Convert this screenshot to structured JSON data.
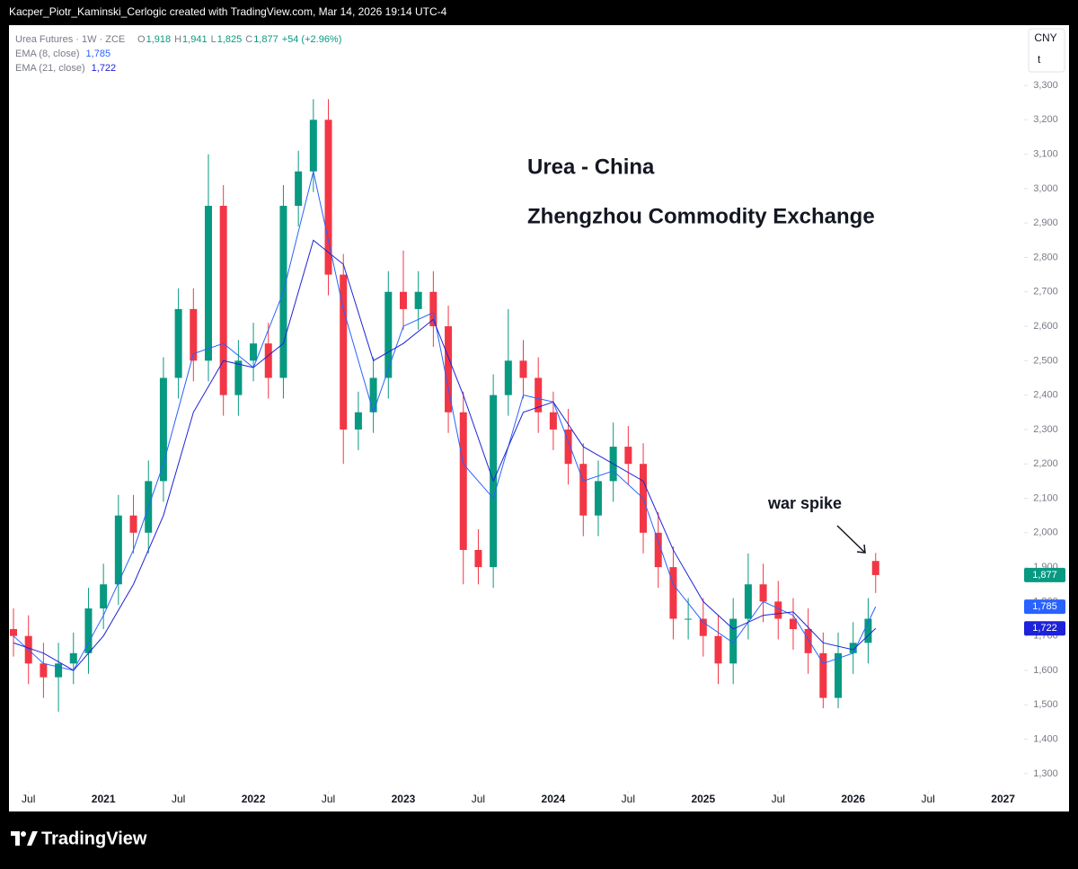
{
  "header": "Kacper_Piotr_Kaminski_Cerlogic created with TradingView.com, Mar 14, 2026 19:14 UTC-4",
  "footer": "TradingView",
  "currency": "CNY",
  "unit": "t",
  "chart_data": {
    "type": "candlestick",
    "symbol": "Urea Futures · 1W · ZCE",
    "ohlc": [
      {
        "prefix": "O",
        "value": 1918,
        "label": "1,918"
      },
      {
        "prefix": "H",
        "value": 1941,
        "label": "1,941"
      },
      {
        "prefix": "L",
        "value": 1825,
        "label": "1,825"
      },
      {
        "prefix": "C",
        "value": 1877,
        "label": "1,877"
      }
    ],
    "change": "+54 (+2.96%)",
    "annotations": [
      "Urea - China",
      "Zhengzhou Commodity Exchange",
      "war spike"
    ],
    "up_color": "#089981",
    "down_color": "#f23645",
    "x": [
      2020.4,
      2020.5,
      2020.6,
      2020.7,
      2020.8,
      2020.9,
      2021.0,
      2021.1,
      2021.2,
      2021.3,
      2021.4,
      2021.5,
      2021.6,
      2021.7,
      2021.8,
      2021.9,
      2022.0,
      2022.1,
      2022.2,
      2022.3,
      2022.4,
      2022.5,
      2022.6,
      2022.7,
      2022.8,
      2022.9,
      2023.0,
      2023.1,
      2023.2,
      2023.3,
      2023.4,
      2023.5,
      2023.6,
      2023.7,
      2023.8,
      2023.9,
      2024.0,
      2024.1,
      2024.2,
      2024.3,
      2024.4,
      2024.5,
      2024.6,
      2024.7,
      2024.8,
      2024.9,
      2025.0,
      2025.1,
      2025.2,
      2025.3,
      2025.4,
      2025.5,
      2025.6,
      2025.7,
      2025.8,
      2025.9,
      2026.0,
      2026.1,
      2026.15
    ],
    "open": [
      1720,
      1700,
      1620,
      1580,
      1620,
      1650,
      1780,
      1850,
      2050,
      2000,
      2150,
      2450,
      2650,
      2500,
      2950,
      2400,
      2500,
      2550,
      2450,
      2950,
      3050,
      3200,
      2750,
      2300,
      2350,
      2450,
      2700,
      2650,
      2700,
      2600,
      2350,
      1950,
      1900,
      2400,
      2500,
      2450,
      2350,
      2300,
      2200,
      2050,
      2150,
      2250,
      2200,
      2000,
      1900,
      1750,
      1750,
      1700,
      1620,
      1750,
      1850,
      1800,
      1750,
      1720,
      1650,
      1520,
      1650,
      1680,
      1918
    ],
    "high": [
      1780,
      1760,
      1680,
      1680,
      1710,
      1840,
      1910,
      2110,
      2110,
      2210,
      2510,
      2710,
      2710,
      3100,
      3010,
      2560,
      2610,
      2610,
      3010,
      3110,
      3260,
      3260,
      2810,
      2410,
      2510,
      2760,
      2820,
      2760,
      2760,
      2660,
      2410,
      2010,
      2460,
      2650,
      2560,
      2510,
      2410,
      2360,
      2260,
      2210,
      2320,
      2310,
      2260,
      2060,
      1960,
      1810,
      1810,
      1760,
      1810,
      1940,
      1910,
      1860,
      1810,
      1780,
      1710,
      1710,
      1740,
      1810,
      1941
    ],
    "low": [
      1640,
      1560,
      1520,
      1480,
      1560,
      1590,
      1720,
      1790,
      1940,
      1940,
      2090,
      2390,
      2440,
      2440,
      2340,
      2340,
      2440,
      2390,
      2390,
      2890,
      2990,
      2690,
      2200,
      2240,
      2290,
      2390,
      2590,
      2590,
      2540,
      2290,
      1850,
      1850,
      1840,
      2340,
      2390,
      2290,
      2240,
      2140,
      1990,
      1990,
      2090,
      2140,
      1940,
      1840,
      1690,
      1690,
      1640,
      1560,
      1560,
      1690,
      1740,
      1690,
      1660,
      1590,
      1490,
      1490,
      1590,
      1620,
      1825
    ],
    "close": [
      1700,
      1620,
      1580,
      1620,
      1650,
      1780,
      1850,
      2050,
      2000,
      2150,
      2450,
      2650,
      2500,
      2950,
      2400,
      2500,
      2550,
      2450,
      2950,
      3050,
      3200,
      2750,
      2300,
      2350,
      2450,
      2700,
      2650,
      2700,
      2600,
      2350,
      1950,
      1900,
      2400,
      2500,
      2450,
      2350,
      2300,
      2200,
      2050,
      2150,
      2250,
      2200,
      2000,
      1900,
      1750,
      1750,
      1700,
      1620,
      1750,
      1850,
      1800,
      1750,
      1720,
      1650,
      1520,
      1650,
      1680,
      1750,
      1877
    ],
    "series": [
      {
        "name": "EMA (8, close)",
        "color": "#2962ff",
        "last": {
          "value": 1785,
          "label": "1,785"
        },
        "x": [
          2020.4,
          2020.6,
          2020.8,
          2021.0,
          2021.2,
          2021.4,
          2021.6,
          2021.8,
          2022.0,
          2022.2,
          2022.4,
          2022.6,
          2022.8,
          2023.0,
          2023.2,
          2023.4,
          2023.6,
          2023.8,
          2024.0,
          2024.2,
          2024.4,
          2024.6,
          2024.8,
          2025.0,
          2025.2,
          2025.4,
          2025.6,
          2025.8,
          2026.0,
          2026.15
        ],
        "values": [
          1700,
          1620,
          1600,
          1760,
          1950,
          2200,
          2520,
          2550,
          2480,
          2700,
          3050,
          2650,
          2350,
          2600,
          2640,
          2200,
          2100,
          2400,
          2380,
          2150,
          2180,
          2100,
          1850,
          1740,
          1680,
          1800,
          1760,
          1620,
          1650,
          1785
        ]
      },
      {
        "name": "EMA (21, close)",
        "color": "#1e22d8",
        "last": {
          "value": 1722,
          "label": "1,722"
        },
        "x": [
          2020.4,
          2020.6,
          2020.8,
          2021.0,
          2021.2,
          2021.4,
          2021.6,
          2021.8,
          2022.0,
          2022.2,
          2022.4,
          2022.6,
          2022.8,
          2023.0,
          2023.2,
          2023.4,
          2023.6,
          2023.8,
          2024.0,
          2024.2,
          2024.4,
          2024.6,
          2024.8,
          2025.0,
          2025.2,
          2025.4,
          2025.6,
          2025.8,
          2026.0,
          2026.15
        ],
        "values": [
          1680,
          1650,
          1600,
          1700,
          1850,
          2050,
          2350,
          2500,
          2480,
          2550,
          2850,
          2780,
          2500,
          2550,
          2620,
          2400,
          2150,
          2350,
          2380,
          2250,
          2200,
          2150,
          1950,
          1800,
          1720,
          1760,
          1770,
          1680,
          1660,
          1722
        ]
      }
    ],
    "xlim": [
      2020.37,
      2027.14
    ],
    "ylim": [
      1250,
      3475
    ],
    "xticks": [
      {
        "value": 2020.5,
        "label": "Jul"
      },
      2021,
      {
        "value": 2021.5,
        "label": "Jul"
      },
      2022,
      {
        "value": 2022.5,
        "label": "Jul"
      },
      2023,
      {
        "value": 2023.5,
        "label": "Jul"
      },
      2024,
      {
        "value": 2024.5,
        "label": "Jul"
      },
      2025,
      {
        "value": 2025.5,
        "label": "Jul"
      },
      2026,
      {
        "value": 2026.5,
        "label": "Jul"
      },
      2027
    ],
    "yticks": [
      {
        "value": 1300,
        "label": "1,300"
      },
      {
        "value": 1400,
        "label": "1,400"
      },
      {
        "value": 1500,
        "label": "1,500"
      },
      {
        "value": 1600,
        "label": "1,600"
      },
      {
        "value": 1700,
        "label": "1,700"
      },
      {
        "value": 1800,
        "label": "1,800"
      },
      {
        "value": 1900,
        "label": "1,900"
      },
      {
        "value": 2000,
        "label": "2,000"
      },
      {
        "value": 2100,
        "label": "2,100"
      },
      {
        "value": 2200,
        "label": "2,200"
      },
      {
        "value": 2300,
        "label": "2,300"
      },
      {
        "value": 2400,
        "label": "2,400"
      },
      {
        "value": 2500,
        "label": "2,500"
      },
      {
        "value": 2600,
        "label": "2,600"
      },
      {
        "value": 2700,
        "label": "2,700"
      },
      {
        "value": 2800,
        "label": "2,800"
      },
      {
        "value": 2900,
        "label": "2,900"
      },
      {
        "value": 3000,
        "label": "3,000"
      },
      {
        "value": 3100,
        "label": "3,100"
      },
      {
        "value": 3200,
        "label": "3,200"
      },
      {
        "value": 3300,
        "label": "3,300"
      }
    ]
  }
}
